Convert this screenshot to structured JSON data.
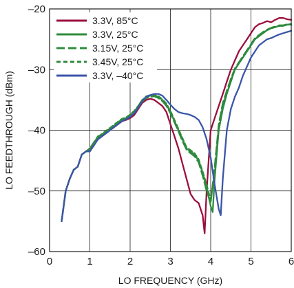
{
  "chart_data": {
    "type": "line",
    "xlabel": "LO FREQUENCY (GHz)",
    "ylabel": "LO FEEDTHROUGH (dBm)",
    "xlim": [
      0,
      6
    ],
    "ylim": [
      -60,
      -20
    ],
    "xticks": [
      0,
      1,
      2,
      3,
      4,
      5,
      6
    ],
    "yticks": [
      -20,
      -30,
      -40,
      -50,
      -60
    ],
    "xtick_labels": [
      "0",
      "1",
      "2",
      "3",
      "4",
      "5",
      "6"
    ],
    "ytick_labels": [
      "–20",
      "–30",
      "–40",
      "–50",
      "–60"
    ],
    "grid": true,
    "legend_position": "top-left",
    "series": [
      {
        "name": "3.3V, 85°C",
        "color": "#9b0f3c",
        "dash": "solid",
        "x": [
          0.3,
          0.4,
          0.5,
          0.6,
          0.7,
          0.8,
          0.9,
          1.0,
          1.1,
          1.2,
          1.3,
          1.4,
          1.5,
          1.6,
          1.7,
          1.8,
          1.9,
          2.0,
          2.1,
          2.2,
          2.3,
          2.4,
          2.5,
          2.6,
          2.7,
          2.8,
          2.9,
          3.0,
          3.1,
          3.2,
          3.3,
          3.4,
          3.5,
          3.6,
          3.7,
          3.8,
          3.85,
          3.9,
          4.0,
          4.1,
          4.2,
          4.3,
          4.4,
          4.5,
          4.6,
          4.7,
          4.8,
          4.9,
          5.0,
          5.1,
          5.2,
          5.3,
          5.4,
          5.5,
          5.6,
          5.7,
          5.8,
          5.9,
          6.0
        ],
        "y": [
          -55.0,
          -50.0,
          -48.0,
          -46.5,
          -46.0,
          -44.0,
          -43.5,
          -43.0,
          -42.0,
          -41.5,
          -41.0,
          -40.5,
          -40.0,
          -39.5,
          -39.0,
          -38.5,
          -38.3,
          -38.0,
          -37.5,
          -36.5,
          -35.5,
          -35.0,
          -34.8,
          -35.0,
          -35.5,
          -36.0,
          -37.0,
          -39.0,
          -41.0,
          -43.0,
          -45.5,
          -48.0,
          -50.5,
          -51.5,
          -52.0,
          -54.0,
          -57.0,
          -50.0,
          -40.0,
          -38.0,
          -36.0,
          -34.0,
          -32.0,
          -30.0,
          -28.5,
          -27.0,
          -26.0,
          -25.0,
          -24.0,
          -23.0,
          -22.5,
          -22.3,
          -22.0,
          -22.2,
          -21.8,
          -21.5,
          -21.5,
          -21.7,
          -21.8
        ]
      },
      {
        "name": "3.3V, 25°C",
        "color": "#2e8b3e",
        "dash": "solid",
        "x": [
          0.3,
          0.4,
          0.5,
          0.6,
          0.7,
          0.8,
          0.9,
          1.0,
          1.1,
          1.2,
          1.3,
          1.4,
          1.5,
          1.6,
          1.7,
          1.8,
          1.9,
          2.0,
          2.1,
          2.2,
          2.3,
          2.4,
          2.5,
          2.6,
          2.7,
          2.8,
          2.9,
          3.0,
          3.1,
          3.2,
          3.3,
          3.4,
          3.5,
          3.6,
          3.7,
          3.8,
          3.9,
          4.0,
          4.05,
          4.1,
          4.2,
          4.3,
          4.4,
          4.5,
          4.6,
          4.7,
          4.8,
          4.9,
          5.0,
          5.1,
          5.2,
          5.3,
          5.4,
          5.5,
          5.6,
          5.7,
          5.8,
          5.9,
          6.0
        ],
        "y": [
          -55.0,
          -50.0,
          -48.0,
          -46.5,
          -46.0,
          -44.0,
          -43.5,
          -43.2,
          -42.0,
          -41.2,
          -40.8,
          -40.3,
          -39.8,
          -39.3,
          -38.8,
          -38.3,
          -38.0,
          -37.6,
          -37.0,
          -36.0,
          -35.0,
          -34.5,
          -34.3,
          -34.2,
          -34.5,
          -35.0,
          -35.8,
          -37.0,
          -38.5,
          -40.0,
          -41.5,
          -43.0,
          -43.5,
          -44.0,
          -45.0,
          -47.0,
          -49.5,
          -52.5,
          -53.5,
          -48.0,
          -40.0,
          -36.5,
          -34.0,
          -32.0,
          -30.0,
          -29.0,
          -28.0,
          -27.0,
          -26.0,
          -25.0,
          -24.5,
          -24.0,
          -23.5,
          -23.2,
          -23.0,
          -22.8,
          -22.8,
          -22.6,
          -22.6
        ]
      },
      {
        "name": "3.15V, 25°C",
        "color": "#2e8b3e",
        "dash": "long",
        "x": [
          0.3,
          0.4,
          0.5,
          0.6,
          0.7,
          0.8,
          0.9,
          1.0,
          1.1,
          1.2,
          1.3,
          1.4,
          1.5,
          1.6,
          1.7,
          1.8,
          1.9,
          2.0,
          2.1,
          2.2,
          2.3,
          2.4,
          2.5,
          2.6,
          2.7,
          2.8,
          2.9,
          3.0,
          3.1,
          3.2,
          3.3,
          3.4,
          3.5,
          3.6,
          3.7,
          3.8,
          3.9,
          4.0,
          4.1,
          4.2,
          4.3,
          4.4,
          4.5,
          4.6,
          4.7,
          4.8,
          4.9,
          5.0,
          5.1,
          5.2,
          5.3,
          5.4,
          5.5,
          5.6,
          5.7,
          5.8,
          5.9,
          6.0
        ],
        "y": [
          -55.0,
          -50.0,
          -48.0,
          -46.5,
          -46.0,
          -44.0,
          -43.5,
          -43.0,
          -42.0,
          -41.0,
          -40.7,
          -40.2,
          -39.7,
          -39.2,
          -38.7,
          -38.2,
          -38.0,
          -37.5,
          -37.0,
          -36.2,
          -35.3,
          -34.7,
          -34.5,
          -34.4,
          -34.7,
          -35.2,
          -36.0,
          -37.2,
          -38.7,
          -40.2,
          -41.8,
          -43.2,
          -43.8,
          -44.3,
          -45.3,
          -47.5,
          -50.0,
          -52.0,
          -46.0,
          -39.0,
          -35.5,
          -33.5,
          -31.5,
          -29.8,
          -28.8,
          -27.8,
          -26.8,
          -25.8,
          -24.8,
          -24.3,
          -23.8,
          -23.4,
          -23.1,
          -22.9,
          -22.7,
          -22.7,
          -22.5,
          -22.5
        ]
      },
      {
        "name": "3.45V, 25°C",
        "color": "#2e8b3e",
        "dash": "short",
        "x": [
          0.3,
          0.4,
          0.5,
          0.6,
          0.7,
          0.8,
          0.9,
          1.0,
          1.1,
          1.2,
          1.3,
          1.4,
          1.5,
          1.6,
          1.7,
          1.8,
          1.9,
          2.0,
          2.1,
          2.2,
          2.3,
          2.4,
          2.5,
          2.6,
          2.7,
          2.8,
          2.9,
          3.0,
          3.1,
          3.2,
          3.3,
          3.4,
          3.5,
          3.6,
          3.7,
          3.8,
          3.9,
          4.0,
          4.1,
          4.2,
          4.3,
          4.4,
          4.5,
          4.6,
          4.7,
          4.8,
          4.9,
          5.0,
          5.1,
          5.2,
          5.3,
          5.4,
          5.5,
          5.6,
          5.7,
          5.8,
          5.9,
          6.0
        ],
        "y": [
          -55.0,
          -50.0,
          -48.0,
          -46.5,
          -46.0,
          -44.0,
          -43.5,
          -43.1,
          -42.0,
          -41.1,
          -40.6,
          -40.1,
          -39.6,
          -39.1,
          -38.6,
          -38.1,
          -37.9,
          -37.4,
          -36.8,
          -36.0,
          -35.1,
          -34.4,
          -34.2,
          -34.1,
          -34.4,
          -34.9,
          -35.6,
          -36.8,
          -38.3,
          -39.8,
          -41.3,
          -42.8,
          -43.3,
          -43.8,
          -44.8,
          -46.8,
          -49.0,
          -51.5,
          -47.0,
          -39.5,
          -36.0,
          -33.8,
          -31.8,
          -30.0,
          -29.0,
          -28.0,
          -27.0,
          -26.0,
          -25.0,
          -24.4,
          -23.9,
          -23.5,
          -23.2,
          -23.0,
          -22.8,
          -22.7,
          -22.6,
          -22.5
        ]
      },
      {
        "name": "3.3V, –40°C",
        "color": "#3a55a8",
        "dash": "solid",
        "x": [
          0.3,
          0.4,
          0.5,
          0.6,
          0.7,
          0.8,
          0.9,
          1.0,
          1.1,
          1.2,
          1.3,
          1.4,
          1.5,
          1.6,
          1.7,
          1.8,
          1.9,
          2.0,
          2.1,
          2.2,
          2.3,
          2.4,
          2.5,
          2.6,
          2.7,
          2.8,
          2.9,
          3.0,
          3.1,
          3.2,
          3.3,
          3.4,
          3.5,
          3.6,
          3.7,
          3.8,
          3.9,
          4.0,
          4.1,
          4.2,
          4.25,
          4.3,
          4.4,
          4.5,
          4.6,
          4.7,
          4.8,
          4.9,
          5.0,
          5.1,
          5.2,
          5.3,
          5.4,
          5.5,
          5.6,
          5.7,
          5.8,
          5.9,
          6.0
        ],
        "y": [
          -55.0,
          -50.0,
          -48.0,
          -46.5,
          -46.0,
          -44.0,
          -43.5,
          -43.5,
          -42.5,
          -41.5,
          -41.0,
          -40.5,
          -40.0,
          -39.5,
          -39.0,
          -38.5,
          -38.2,
          -37.8,
          -37.2,
          -36.3,
          -35.2,
          -34.5,
          -34.2,
          -34.0,
          -34.0,
          -34.3,
          -35.0,
          -35.8,
          -36.5,
          -37.0,
          -37.2,
          -37.3,
          -37.5,
          -37.8,
          -38.3,
          -39.5,
          -41.5,
          -44.5,
          -49.0,
          -53.0,
          -54.0,
          -48.0,
          -40.0,
          -36.5,
          -34.5,
          -33.0,
          -31.0,
          -29.5,
          -28.0,
          -27.0,
          -26.0,
          -25.5,
          -25.0,
          -24.8,
          -24.5,
          -24.2,
          -24.0,
          -23.8,
          -23.6
        ]
      }
    ]
  }
}
